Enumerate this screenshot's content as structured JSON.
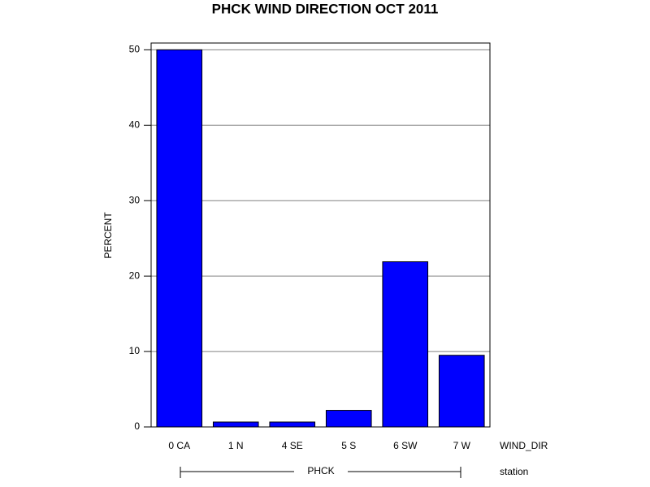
{
  "chart_data": {
    "type": "bar",
    "title": "PHCK WIND DIRECTION OCT 2011",
    "y_label": "PERCENT",
    "x_label": "WIND_DIR",
    "group_axis_label": "station",
    "group": "PHCK",
    "categories": [
      "0 CA",
      "1 N",
      "4 SE",
      "5 S",
      "6 SW",
      "7 W"
    ],
    "values": [
      50,
      0.65,
      0.65,
      2.2,
      21.9,
      9.5
    ],
    "color": "#0000ff",
    "ylim": [
      0,
      50.9
    ],
    "yticks": [
      0,
      10,
      20,
      30,
      40,
      50
    ],
    "grid": true
  }
}
